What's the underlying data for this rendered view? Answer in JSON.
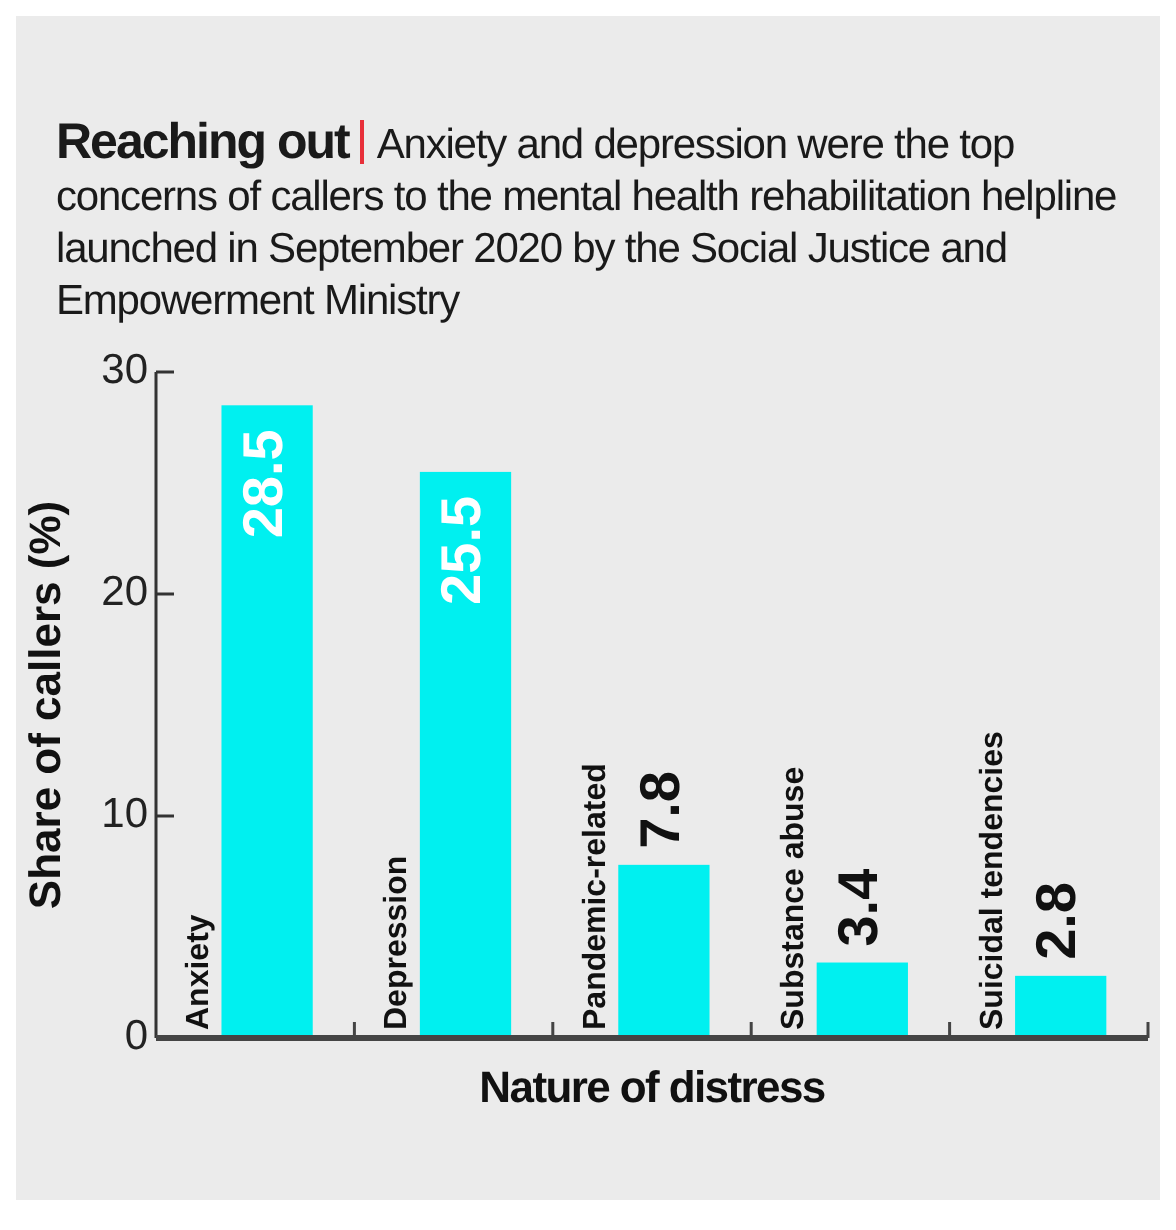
{
  "chart_data": {
    "type": "bar",
    "title": "Reaching out",
    "subtitle": "Anxiety and depression were the top concerns of callers to the mental health rehabilitation helpline launched in September 2020 by the Social Justice and Empowerment Ministry",
    "categories": [
      "Anxiety",
      "Depression",
      "Pandemic-related",
      "Substance abuse",
      "Suicidal tendencies"
    ],
    "values": [
      28.5,
      25.5,
      7.8,
      3.4,
      2.8
    ],
    "color": "#00f0f0",
    "xlabel": "Nature of distress",
    "ylabel": "Share of callers (%)",
    "ylim": [
      0,
      30
    ],
    "yticks": [
      0,
      10,
      20,
      30
    ],
    "grid": false,
    "data_labels": true
  }
}
